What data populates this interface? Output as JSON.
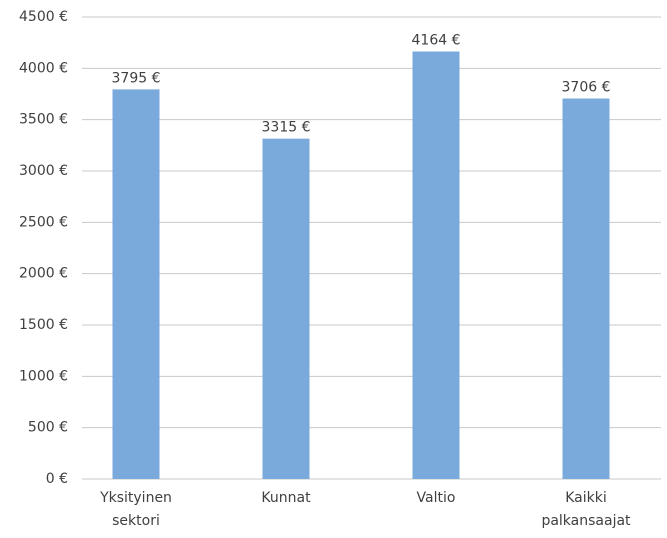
{
  "chart_data": {
    "type": "bar",
    "categories": [
      "Yksityinen sektori",
      "Kunnat",
      "Valtio",
      "Kaikki palkansaajat"
    ],
    "values": [
      3795,
      3315,
      4164,
      3706
    ],
    "value_labels": [
      "3795 €",
      "3315 €",
      "4164 €",
      "3706 €"
    ],
    "color": "#7aa9dc",
    "ylim": [
      0,
      4500
    ],
    "yticks": [
      {
        "value": 0,
        "label": "0 €"
      },
      {
        "value": 500,
        "label": "500 €"
      },
      {
        "value": 1000,
        "label": "1000 €"
      },
      {
        "value": 1500,
        "label": "1500 €"
      },
      {
        "value": 2000,
        "label": "2000 €"
      },
      {
        "value": 2500,
        "label": "2500 €"
      },
      {
        "value": 3000,
        "label": "3000 €"
      },
      {
        "value": 3500,
        "label": "3500 €"
      },
      {
        "value": 4000,
        "label": "4000 €"
      },
      {
        "value": 4500,
        "label": "4500 €"
      }
    ],
    "grid": true
  }
}
